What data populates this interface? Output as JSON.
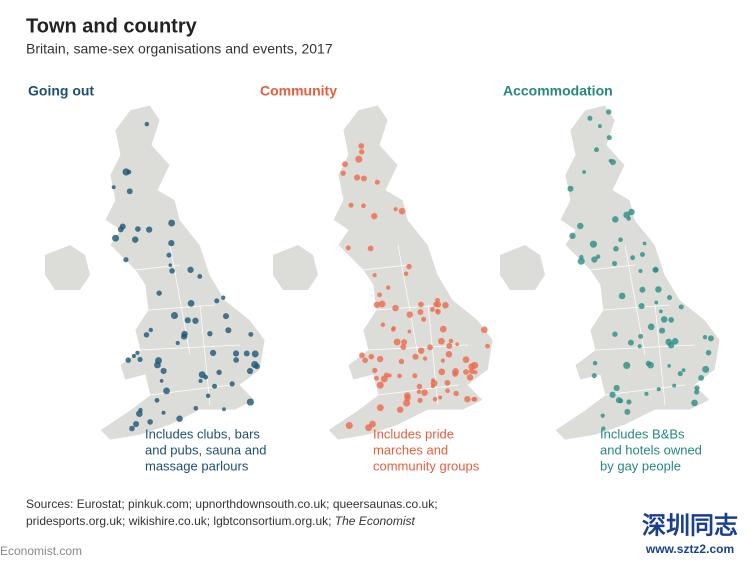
{
  "header": {
    "title": "Town and country",
    "subtitle": "Britain, same-sex organisations and events, 2017"
  },
  "panels": [
    {
      "title": "Going out",
      "note": [
        "Includes clubs, bars",
        "and pubs, sauna and",
        "massage parlours"
      ]
    },
    {
      "title": "Community",
      "note": [
        "Includes pride",
        "marches and",
        "community groups"
      ]
    },
    {
      "title": "Accommodation",
      "note": [
        "Includes B&Bs",
        "and hotels owned",
        "by gay people"
      ]
    }
  ],
  "sources": {
    "line1": "Sources: Eurostat; pinkuk.com; upnorthdownsouth.co.uk; queersaunas.co.uk;",
    "line2": "pridesports.org.uk; wikishire.co.uk; lgbtconsortium.org.uk; ",
    "line2_italic": "The Economist"
  },
  "footer": "Economist.com",
  "watermark": {
    "name": "深圳同志",
    "url": "www.sztz2.com"
  }
}
